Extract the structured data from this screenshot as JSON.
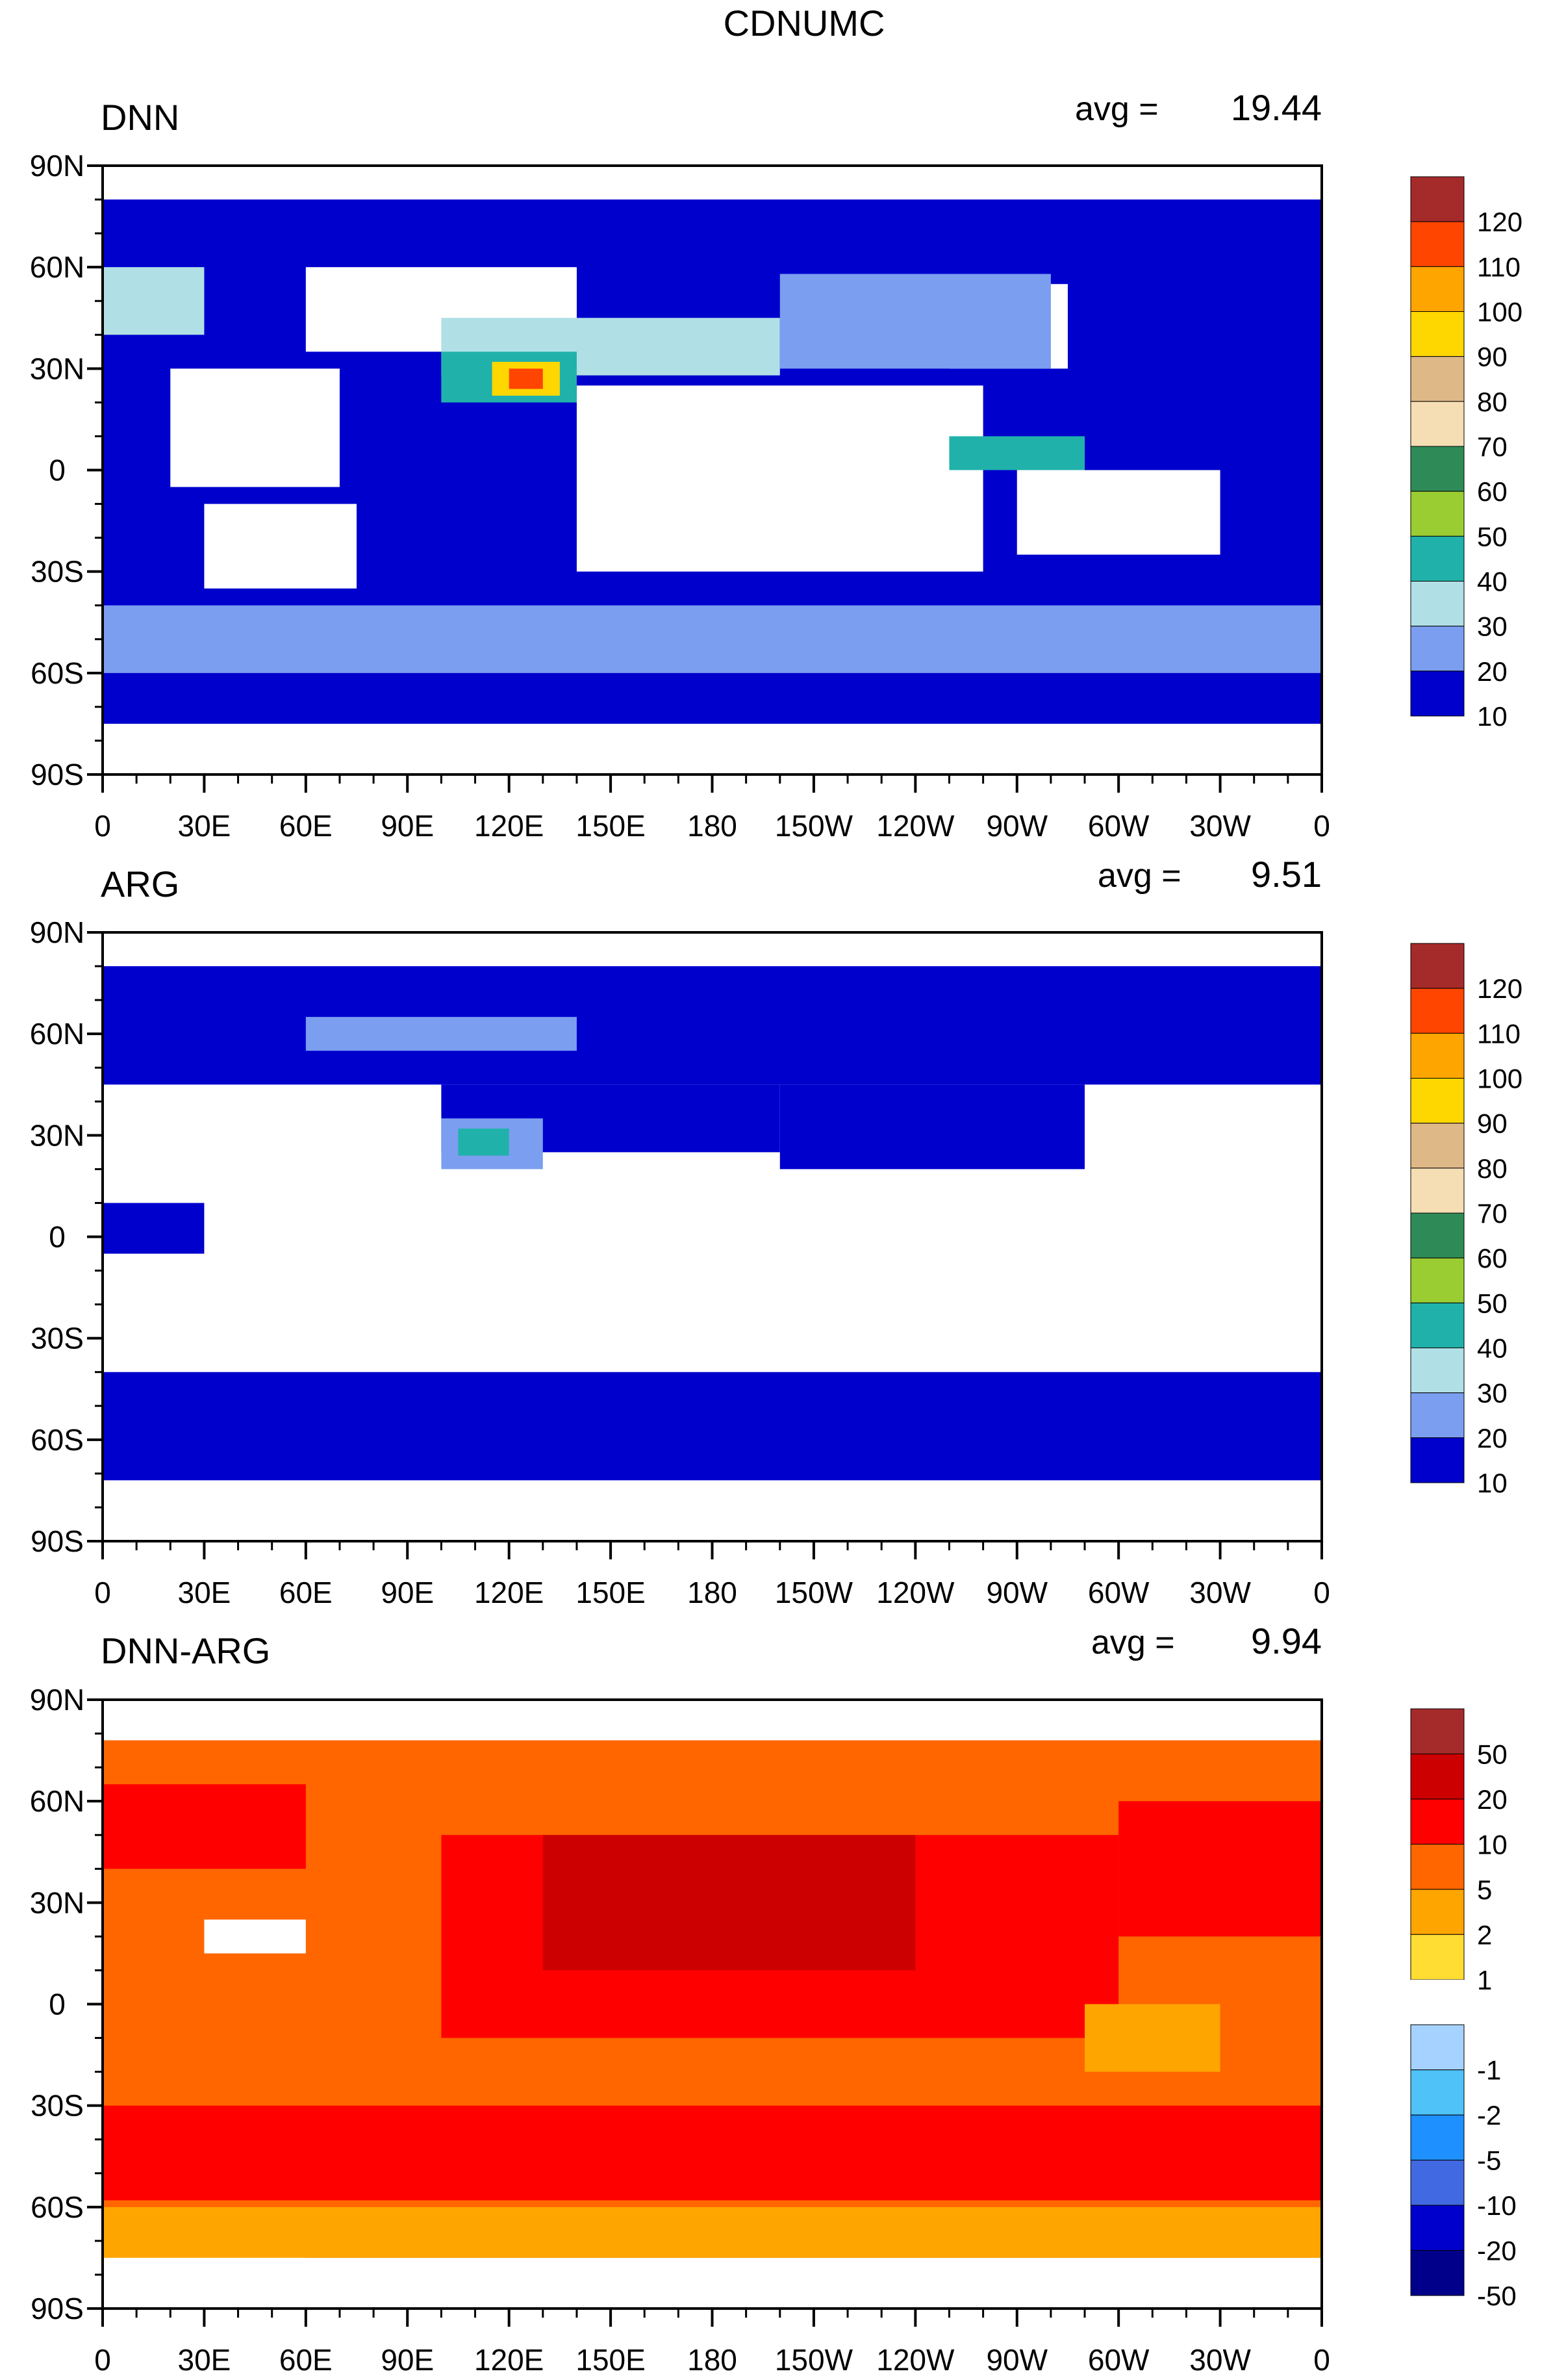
{
  "figure": {
    "title": "CDNUMC"
  },
  "chart_data": [
    {
      "type": "heatmap",
      "panel_label": "DNN",
      "avg_label": "avg =",
      "avg_value": "19.44",
      "x_ticks": [
        "0",
        "30E",
        "60E",
        "90E",
        "120E",
        "150E",
        "180",
        "150W",
        "120W",
        "90W",
        "60W",
        "30W",
        "0"
      ],
      "y_ticks": [
        "90N",
        "60N",
        "30N",
        "0",
        "30S",
        "60S",
        "90S"
      ],
      "colorbar": {
        "labels": [
          "120",
          "110",
          "100",
          "90",
          "80",
          "70",
          "60",
          "50",
          "40",
          "30",
          "20",
          "10"
        ],
        "colors": [
          "#a52a2a",
          "#ff4500",
          "#ffa500",
          "#ffd700",
          "#deb887",
          "#f5deb3",
          "#2e8b57",
          "#9acd32",
          "#20b2aa",
          "#b0e0e6",
          "#7b9ef0",
          "#0000cd"
        ]
      },
      "regions": [
        {
          "lon": [
            0,
            360
          ],
          "lat": [
            -75,
            80
          ],
          "level": 10
        },
        {
          "lon": [
            20,
            70
          ],
          "lat": [
            -5,
            30
          ],
          "level": 0
        },
        {
          "lon": [
            60,
            140
          ],
          "lat": [
            35,
            60
          ],
          "level": 0
        },
        {
          "lon": [
            140,
            260
          ],
          "lat": [
            -30,
            25
          ],
          "level": 0
        },
        {
          "lon": [
            30,
            75
          ],
          "lat": [
            -35,
            -10
          ],
          "level": 0
        },
        {
          "lon": [
            250,
            285
          ],
          "lat": [
            30,
            55
          ],
          "level": 0
        },
        {
          "lon": [
            270,
            330
          ],
          "lat": [
            -25,
            0
          ],
          "level": 0
        },
        {
          "lon": [
            100,
            200
          ],
          "lat": [
            28,
            45
          ],
          "level": 30
        },
        {
          "lon": [
            100,
            140
          ],
          "lat": [
            20,
            35
          ],
          "level": 40
        },
        {
          "lon": [
            115,
            135
          ],
          "lat": [
            22,
            32
          ],
          "level": 90
        },
        {
          "lon": [
            120,
            130
          ],
          "lat": [
            24,
            30
          ],
          "level": 110
        },
        {
          "lon": [
            200,
            280
          ],
          "lat": [
            30,
            58
          ],
          "level": 20
        },
        {
          "lon": [
            250,
            290
          ],
          "lat": [
            0,
            10
          ],
          "level": 40
        },
        {
          "lon": [
            0,
            360
          ],
          "lat": [
            -60,
            -40
          ],
          "level": 20
        },
        {
          "lon": [
            0,
            30
          ],
          "lat": [
            40,
            60
          ],
          "level": 30
        }
      ]
    },
    {
      "type": "heatmap",
      "panel_label": "ARG",
      "avg_label": "avg =",
      "avg_value": "9.51",
      "x_ticks": [
        "0",
        "30E",
        "60E",
        "90E",
        "120E",
        "150E",
        "180",
        "150W",
        "120W",
        "90W",
        "60W",
        "30W",
        "0"
      ],
      "y_ticks": [
        "90N",
        "60N",
        "30N",
        "0",
        "30S",
        "60S",
        "90S"
      ],
      "colorbar": {
        "labels": [
          "120",
          "110",
          "100",
          "90",
          "80",
          "70",
          "60",
          "50",
          "40",
          "30",
          "20",
          "10"
        ],
        "colors": [
          "#a52a2a",
          "#ff4500",
          "#ffa500",
          "#ffd700",
          "#deb887",
          "#f5deb3",
          "#2e8b57",
          "#9acd32",
          "#20b2aa",
          "#b0e0e6",
          "#7b9ef0",
          "#0000cd"
        ]
      },
      "regions": [
        {
          "lon": [
            0,
            360
          ],
          "lat": [
            -72,
            -40
          ],
          "level": 10
        },
        {
          "lon": [
            0,
            360
          ],
          "lat": [
            45,
            80
          ],
          "level": 10
        },
        {
          "lon": [
            100,
            200
          ],
          "lat": [
            25,
            45
          ],
          "level": 10
        },
        {
          "lon": [
            200,
            290
          ],
          "lat": [
            20,
            45
          ],
          "level": 10
        },
        {
          "lon": [
            0,
            30
          ],
          "lat": [
            -5,
            10
          ],
          "level": 10
        },
        {
          "lon": [
            60,
            140
          ],
          "lat": [
            55,
            65
          ],
          "level": 20
        },
        {
          "lon": [
            100,
            130
          ],
          "lat": [
            20,
            35
          ],
          "level": 20
        },
        {
          "lon": [
            105,
            120
          ],
          "lat": [
            24,
            32
          ],
          "level": 40
        }
      ]
    },
    {
      "type": "heatmap",
      "panel_label": "DNN-ARG",
      "avg_label": "avg =",
      "avg_value": "9.94",
      "x_ticks": [
        "0",
        "30E",
        "60E",
        "90E",
        "120E",
        "150E",
        "180",
        "150W",
        "120W",
        "90W",
        "60W",
        "30W",
        "0"
      ],
      "y_ticks": [
        "90N",
        "60N",
        "30N",
        "0",
        "30S",
        "60S",
        "90S"
      ],
      "colorbar": {
        "labels": [
          "50",
          "20",
          "10",
          "5",
          "2",
          "1",
          "",
          "-1",
          "-2",
          "-5",
          "-10",
          "-20",
          "-50"
        ],
        "colors": [
          "#a52a2a",
          "#cc0000",
          "#ff0000",
          "#ff6600",
          "#ffa500",
          "#ffdd33",
          "#ffffff",
          "#a6d2ff",
          "#4fc3f7",
          "#1e90ff",
          "#4169e1",
          "#0000cd",
          "#00008b"
        ]
      },
      "regions": [
        {
          "lon": [
            0,
            360
          ],
          "lat": [
            -75,
            78
          ],
          "level": 5
        },
        {
          "lon": [
            0,
            360
          ],
          "lat": [
            -75,
            -60
          ],
          "level": 2
        },
        {
          "lon": [
            100,
            300
          ],
          "lat": [
            -10,
            50
          ],
          "level": 10
        },
        {
          "lon": [
            130,
            240
          ],
          "lat": [
            10,
            50
          ],
          "level": 20
        },
        {
          "lon": [
            0,
            360
          ],
          "lat": [
            -58,
            -30
          ],
          "level": 10
        },
        {
          "lon": [
            0,
            60
          ],
          "lat": [
            40,
            65
          ],
          "level": 10
        },
        {
          "lon": [
            300,
            360
          ],
          "lat": [
            20,
            60
          ],
          "level": 10
        },
        {
          "lon": [
            30,
            60
          ],
          "lat": [
            15,
            25
          ],
          "level": 0
        },
        {
          "lon": [
            0,
            360
          ],
          "lat": [
            80,
            90
          ],
          "level": 0
        },
        {
          "lon": [
            0,
            60
          ],
          "lat": [
            -90,
            -75
          ],
          "level": 0
        },
        {
          "lon": [
            290,
            330
          ],
          "lat": [
            -20,
            0
          ],
          "level": 2
        }
      ]
    }
  ]
}
